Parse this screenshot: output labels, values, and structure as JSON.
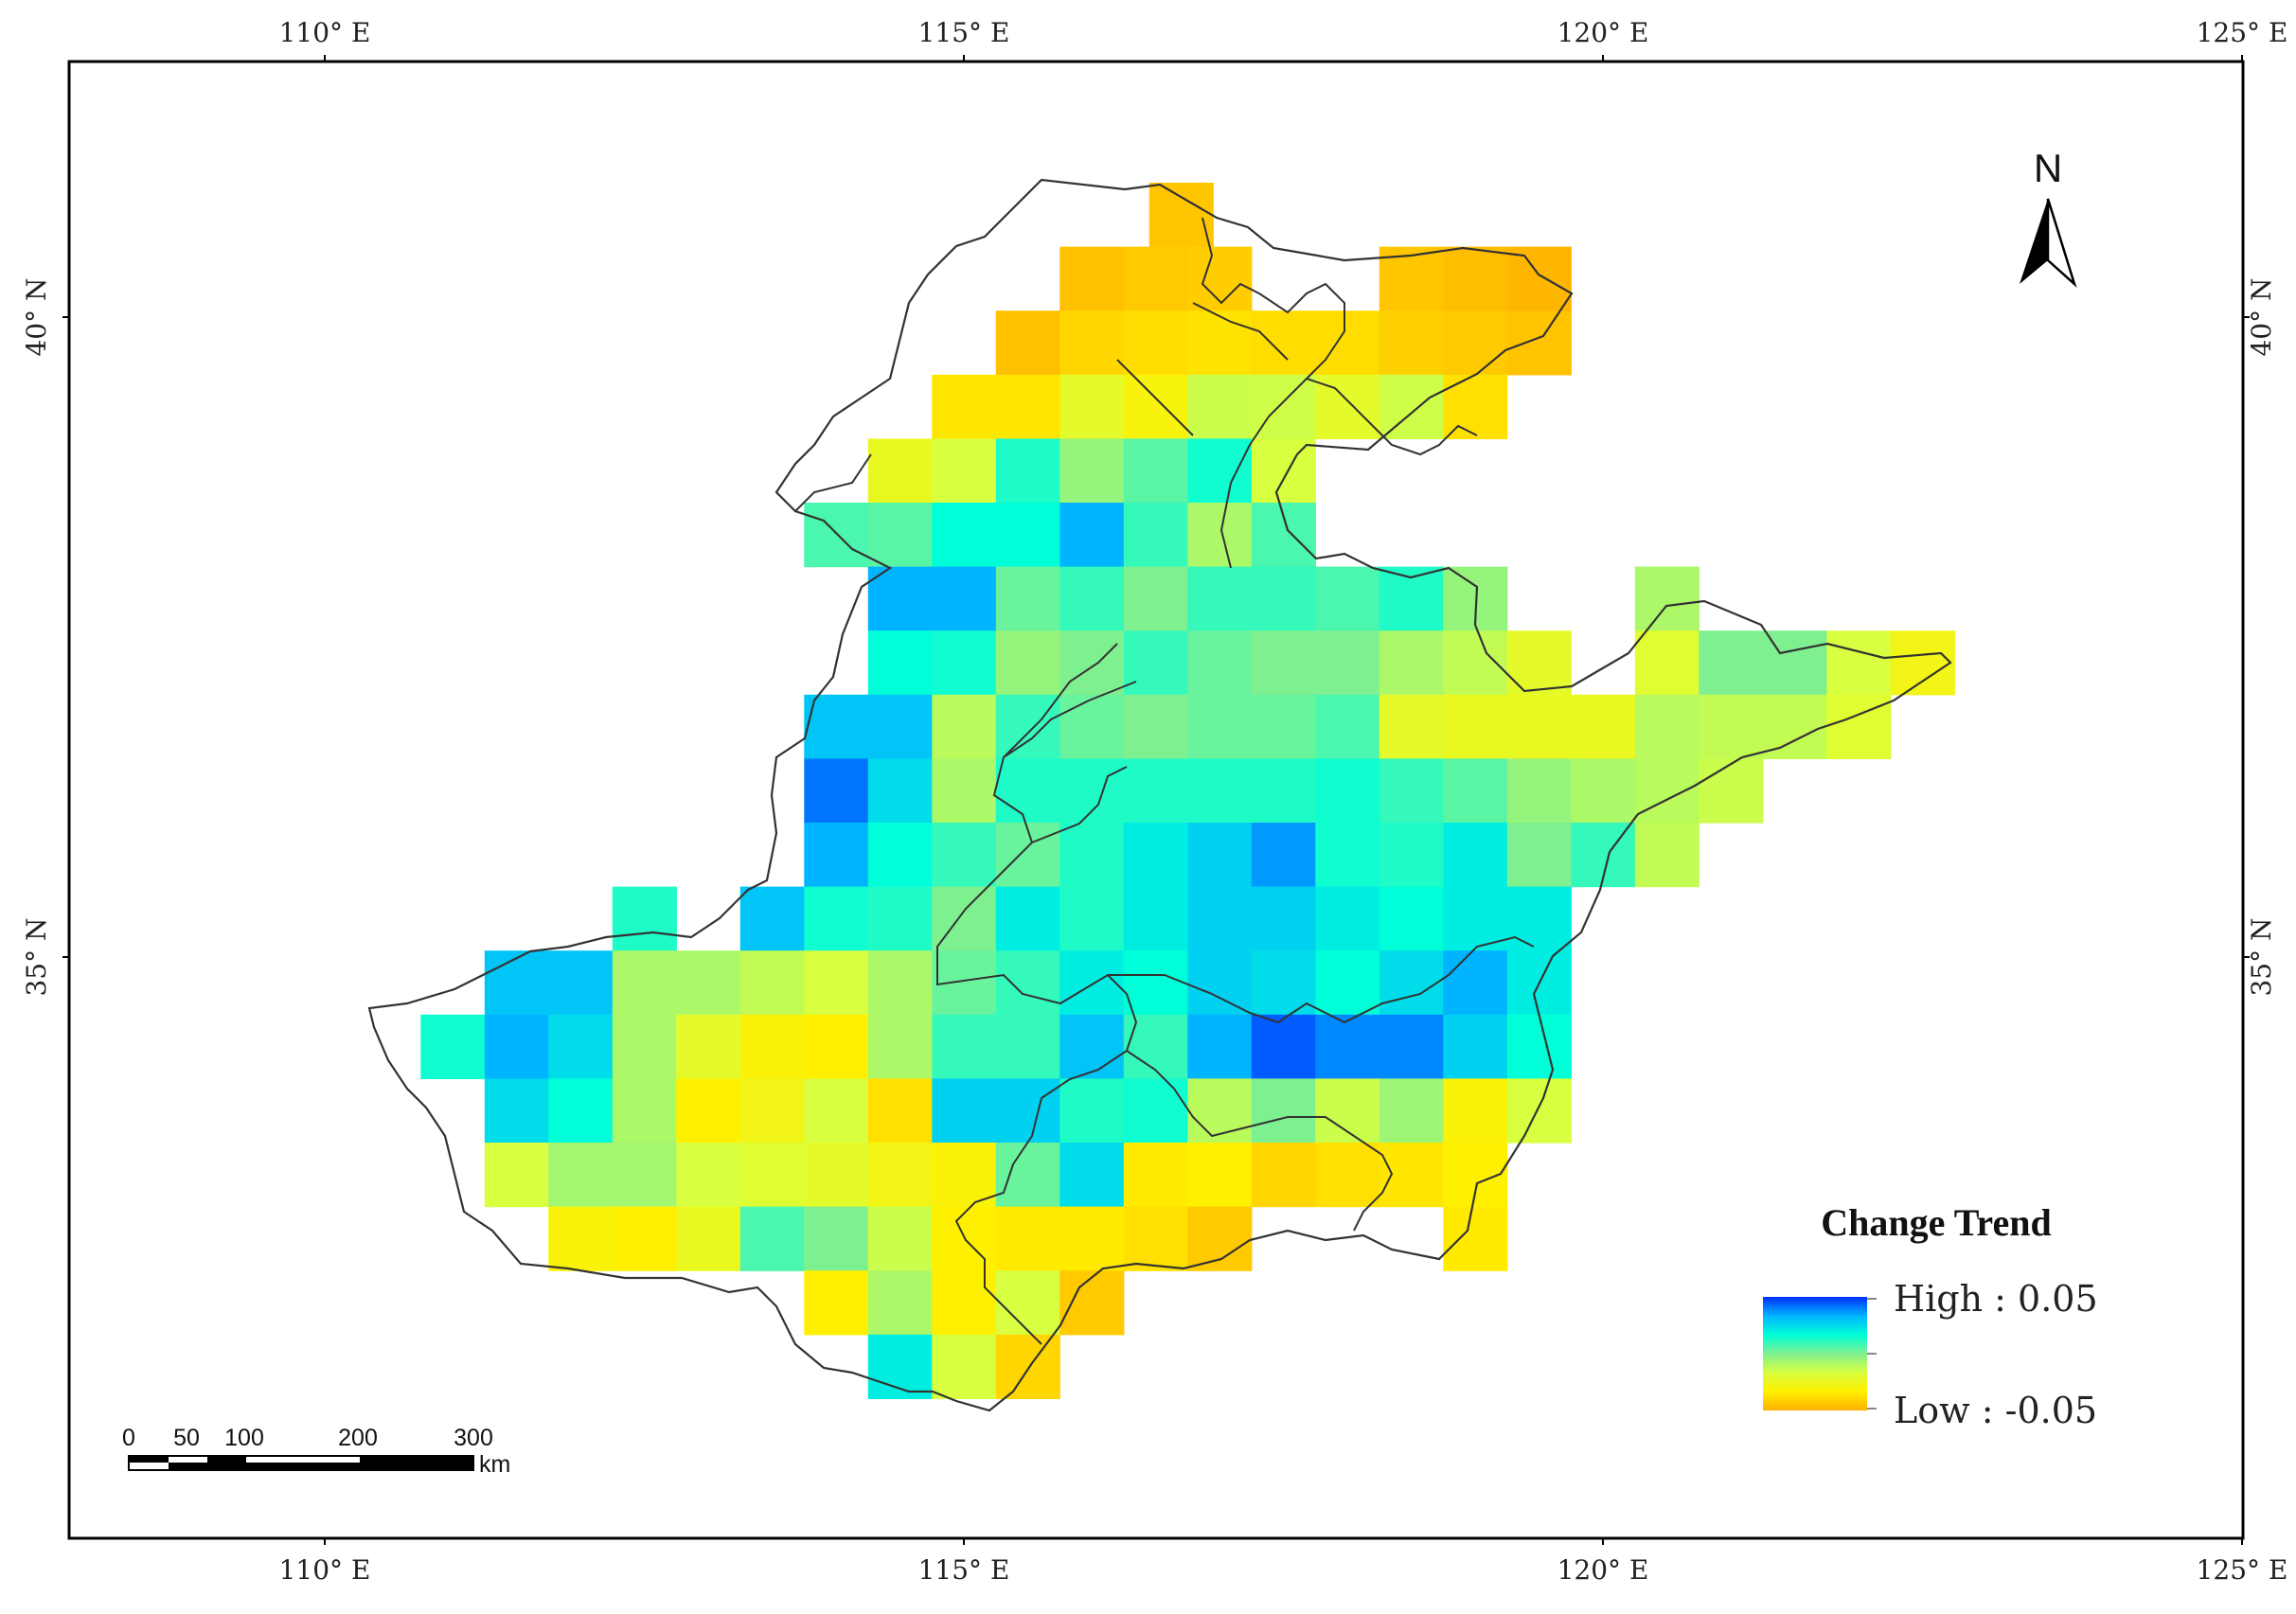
{
  "axes": {
    "longitude_ticks": [
      "110° E",
      "115° E",
      "120° E",
      "125° E"
    ],
    "latitude_ticks": [
      "40° N",
      "35° N"
    ]
  },
  "legend": {
    "title": "Change Trend",
    "high_label": "High : 0.05",
    "low_label": "Low : -0.05",
    "high_value": 0.05,
    "low_value": -0.05,
    "colors": [
      "#0030ff",
      "#00b4ff",
      "#00ffd8",
      "#7ff090",
      "#d8ff40",
      "#fff000",
      "#ffb000"
    ]
  },
  "scale_bar": {
    "labels": [
      "0",
      "50",
      "100",
      "200",
      "300"
    ],
    "unit": "km"
  },
  "north_arrow": {
    "label": "N"
  },
  "grid_values": {
    "description_of_scale": "per-cell trend value, -0.05 (orange) to 0.05 (blue)",
    "rows": [
      {
        "lat": 40.8,
        "cells": [
          [
            116.7,
            -0.043
          ]
        ]
      },
      {
        "lat": 40.3,
        "cells": [
          [
            116.0,
            -0.045
          ],
          [
            116.5,
            -0.042
          ],
          [
            117.0,
            -0.041
          ],
          [
            118.5,
            -0.043
          ],
          [
            119.0,
            -0.046
          ],
          [
            119.5,
            -0.048
          ]
        ]
      },
      {
        "lat": 39.8,
        "cells": [
          [
            115.5,
            -0.045
          ],
          [
            116.0,
            -0.038
          ],
          [
            116.5,
            -0.036
          ],
          [
            117.0,
            -0.034
          ],
          [
            117.5,
            -0.036
          ],
          [
            118.0,
            -0.036
          ],
          [
            118.5,
            -0.04
          ],
          [
            119.0,
            -0.042
          ],
          [
            119.5,
            -0.044
          ]
        ]
      },
      {
        "lat": 39.3,
        "cells": [
          [
            115.0,
            -0.033
          ],
          [
            115.5,
            -0.033
          ],
          [
            116.0,
            -0.02
          ],
          [
            116.5,
            -0.027
          ],
          [
            117.0,
            -0.012
          ],
          [
            117.5,
            -0.013
          ],
          [
            118.0,
            -0.02
          ],
          [
            118.5,
            -0.013
          ],
          [
            119.0,
            -0.035
          ]
        ]
      },
      {
        "lat": 38.8,
        "cells": [
          [
            114.5,
            -0.022
          ],
          [
            115.0,
            -0.015
          ],
          [
            115.5,
            0.018
          ],
          [
            116.0,
            0.0
          ],
          [
            116.5,
            0.01
          ],
          [
            117.0,
            0.02
          ],
          [
            117.5,
            -0.015
          ]
        ]
      },
      {
        "lat": 38.3,
        "cells": [
          [
            114.0,
            0.012
          ],
          [
            114.5,
            0.01
          ],
          [
            115.0,
            0.022
          ],
          [
            115.5,
            0.022
          ],
          [
            116.0,
            0.035
          ],
          [
            116.5,
            0.015
          ],
          [
            117.0,
            -0.005
          ],
          [
            117.5,
            0.012
          ]
        ]
      },
      {
        "lat": 37.8,
        "cells": [
          [
            114.5,
            0.035
          ],
          [
            115.0,
            0.035
          ],
          [
            115.5,
            0.008
          ],
          [
            116.0,
            0.015
          ],
          [
            116.5,
            0.005
          ],
          [
            117.0,
            0.015
          ],
          [
            117.5,
            0.015
          ],
          [
            118.0,
            0.012
          ],
          [
            118.5,
            0.018
          ],
          [
            119.0,
            0.0
          ],
          [
            120.5,
            -0.005
          ]
        ]
      },
      {
        "lat": 37.3,
        "cells": [
          [
            114.5,
            0.022
          ],
          [
            115.0,
            0.02
          ],
          [
            115.5,
            0.0
          ],
          [
            116.0,
            0.005
          ],
          [
            116.5,
            0.015
          ],
          [
            117.0,
            0.008
          ],
          [
            117.5,
            0.005
          ],
          [
            118.0,
            0.005
          ],
          [
            118.5,
            -0.005
          ],
          [
            119.0,
            -0.01
          ],
          [
            119.5,
            -0.02
          ],
          [
            120.5,
            -0.018
          ],
          [
            121.0,
            0.005
          ],
          [
            121.5,
            0.005
          ],
          [
            122.0,
            -0.015
          ],
          [
            122.5,
            -0.025
          ]
        ]
      },
      {
        "lat": 36.8,
        "cells": [
          [
            114.0,
            0.032
          ],
          [
            114.5,
            0.032
          ],
          [
            115.0,
            -0.008
          ],
          [
            115.5,
            0.015
          ],
          [
            116.0,
            0.008
          ],
          [
            116.5,
            0.005
          ],
          [
            117.0,
            0.008
          ],
          [
            117.5,
            0.008
          ],
          [
            118.0,
            0.012
          ],
          [
            118.5,
            -0.02
          ],
          [
            119.0,
            -0.022
          ],
          [
            119.5,
            -0.022
          ],
          [
            120.0,
            -0.022
          ],
          [
            120.5,
            -0.008
          ],
          [
            121.0,
            -0.01
          ],
          [
            121.5,
            -0.01
          ],
          [
            122.0,
            -0.018
          ]
        ]
      },
      {
        "lat": 36.3,
        "cells": [
          [
            114.0,
            0.042
          ],
          [
            114.5,
            0.028
          ],
          [
            115.0,
            -0.005
          ],
          [
            115.5,
            0.018
          ],
          [
            116.0,
            0.018
          ],
          [
            116.5,
            0.018
          ],
          [
            117.0,
            0.018
          ],
          [
            117.5,
            0.018
          ],
          [
            118.0,
            0.02
          ],
          [
            118.5,
            0.015
          ],
          [
            119.0,
            0.01
          ],
          [
            119.5,
            0.0
          ],
          [
            120.0,
            -0.005
          ],
          [
            120.5,
            -0.008
          ],
          [
            121.0,
            -0.012
          ]
        ]
      },
      {
        "lat": 35.8,
        "cells": [
          [
            114.0,
            0.035
          ],
          [
            114.5,
            0.022
          ],
          [
            115.0,
            0.015
          ],
          [
            115.5,
            0.008
          ],
          [
            116.0,
            0.018
          ],
          [
            116.5,
            0.025
          ],
          [
            117.0,
            0.03
          ],
          [
            117.5,
            0.038
          ],
          [
            118.0,
            0.02
          ],
          [
            118.5,
            0.018
          ],
          [
            119.0,
            0.025
          ],
          [
            119.5,
            0.005
          ],
          [
            120.0,
            0.015
          ],
          [
            120.5,
            -0.01
          ]
        ]
      },
      {
        "lat": 35.3,
        "cells": [
          [
            112.5,
            0.018
          ],
          [
            113.5,
            0.032
          ],
          [
            114.0,
            0.02
          ],
          [
            114.5,
            0.018
          ],
          [
            115.0,
            0.005
          ],
          [
            115.5,
            0.025
          ],
          [
            116.0,
            0.018
          ],
          [
            116.5,
            0.025
          ],
          [
            117.0,
            0.03
          ],
          [
            117.5,
            0.03
          ],
          [
            118.0,
            0.025
          ],
          [
            118.5,
            0.022
          ],
          [
            119.0,
            0.025
          ],
          [
            119.5,
            0.025
          ]
        ]
      },
      {
        "lat": 34.8,
        "cells": [
          [
            111.5,
            0.032
          ],
          [
            112.0,
            0.032
          ],
          [
            112.5,
            -0.005
          ],
          [
            113.0,
            -0.005
          ],
          [
            113.5,
            -0.01
          ],
          [
            114.0,
            -0.015
          ],
          [
            114.5,
            -0.005
          ],
          [
            115.0,
            0.008
          ],
          [
            115.5,
            0.015
          ],
          [
            116.0,
            0.025
          ],
          [
            116.5,
            0.022
          ],
          [
            117.0,
            0.03
          ],
          [
            117.5,
            0.028
          ],
          [
            118.0,
            0.022
          ],
          [
            118.5,
            0.028
          ],
          [
            119.0,
            0.035
          ],
          [
            119.5,
            0.025
          ]
        ]
      },
      {
        "lat": 34.3,
        "cells": [
          [
            111.0,
            0.02
          ],
          [
            111.5,
            0.035
          ],
          [
            112.0,
            0.028
          ],
          [
            112.5,
            -0.005
          ],
          [
            113.0,
            -0.02
          ],
          [
            113.5,
            -0.028
          ],
          [
            114.0,
            -0.03
          ],
          [
            114.5,
            -0.005
          ],
          [
            115.0,
            0.015
          ],
          [
            115.5,
            0.015
          ],
          [
            116.0,
            0.032
          ],
          [
            116.5,
            0.015
          ],
          [
            117.0,
            0.035
          ],
          [
            117.5,
            0.045
          ],
          [
            118.0,
            0.04
          ],
          [
            118.5,
            0.04
          ],
          [
            119.0,
            0.03
          ],
          [
            119.5,
            0.022
          ]
        ]
      },
      {
        "lat": 33.8,
        "cells": [
          [
            111.5,
            0.028
          ],
          [
            112.0,
            0.022
          ],
          [
            112.5,
            -0.005
          ],
          [
            113.0,
            -0.03
          ],
          [
            113.5,
            -0.025
          ],
          [
            114.0,
            -0.015
          ],
          [
            114.5,
            -0.035
          ],
          [
            115.0,
            0.03
          ],
          [
            115.5,
            0.03
          ],
          [
            116.0,
            0.018
          ],
          [
            116.5,
            0.02
          ],
          [
            117.0,
            -0.008
          ],
          [
            117.5,
            0.005
          ],
          [
            118.0,
            -0.012
          ],
          [
            118.5,
            -0.002
          ],
          [
            119.0,
            -0.028
          ],
          [
            119.5,
            -0.015
          ]
        ]
      },
      {
        "lat": 33.3,
        "cells": [
          [
            111.5,
            -0.015
          ],
          [
            112.0,
            -0.003
          ],
          [
            112.5,
            -0.003
          ],
          [
            113.0,
            -0.015
          ],
          [
            113.5,
            -0.018
          ],
          [
            114.0,
            -0.02
          ],
          [
            114.5,
            -0.025
          ],
          [
            115.0,
            -0.028
          ],
          [
            115.5,
            0.008
          ],
          [
            116.0,
            0.028
          ],
          [
            116.5,
            -0.032
          ],
          [
            117.0,
            -0.03
          ],
          [
            117.5,
            -0.038
          ],
          [
            118.0,
            -0.035
          ],
          [
            118.5,
            -0.033
          ],
          [
            119.0,
            -0.03
          ]
        ]
      },
      {
        "lat": 32.8,
        "cells": [
          [
            112.0,
            -0.028
          ],
          [
            112.5,
            -0.03
          ],
          [
            113.0,
            -0.022
          ],
          [
            113.5,
            0.012
          ],
          [
            114.0,
            0.005
          ],
          [
            114.5,
            -0.012
          ],
          [
            115.0,
            -0.03
          ],
          [
            115.5,
            -0.032
          ],
          [
            116.0,
            -0.032
          ],
          [
            116.5,
            -0.035
          ],
          [
            117.0,
            -0.042
          ],
          [
            119.0,
            -0.032
          ]
        ]
      },
      {
        "lat": 32.3,
        "cells": [
          [
            114.0,
            -0.03
          ],
          [
            114.5,
            -0.005
          ],
          [
            115.0,
            -0.03
          ],
          [
            115.5,
            -0.015
          ],
          [
            116.0,
            -0.042
          ]
        ]
      },
      {
        "lat": 31.8,
        "cells": [
          [
            114.5,
            0.025
          ],
          [
            115.0,
            -0.015
          ],
          [
            115.5,
            -0.038
          ]
        ]
      }
    ]
  }
}
